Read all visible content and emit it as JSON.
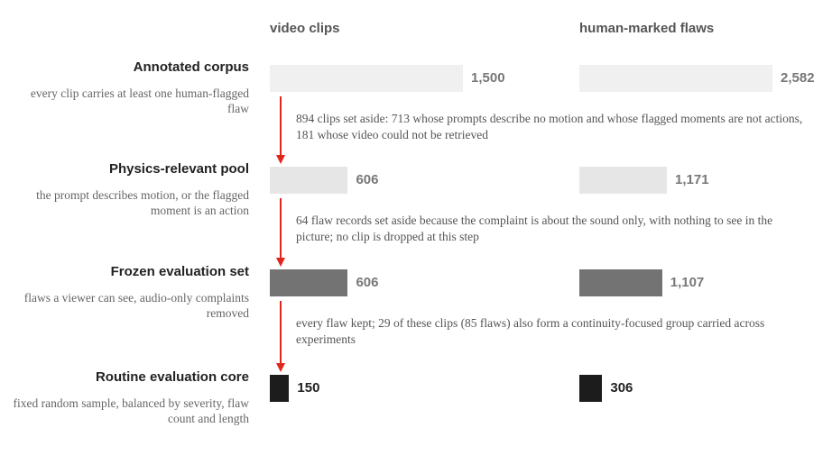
{
  "chart_data": {
    "type": "bar",
    "categories": [
      "Annotated corpus",
      "Physics-relevant pool",
      "Frozen evaluation set",
      "Routine evaluation core"
    ],
    "descriptions": [
      "every clip carries at least one human-flagged flaw",
      "the prompt describes motion, or the flagged moment is an action",
      "flaws a viewer can see, audio-only complaints removed",
      "fixed random sample, balanced by severity, flaw count and length"
    ],
    "notes": [
      "894 clips set aside: 713 whose prompts describe no motion and whose flagged moments are not actions, 181 whose video could not be retrieved",
      "64 flaw records set aside because the complaint is about the sound only, with nothing to see in the picture; no clip is dropped at this step",
      "every flaw kept; 29 of these clips (85 flaws) also form a continuity-focused group carried across experiments"
    ],
    "colors": [
      "#f0f0f0",
      "#e6e6e6",
      "#737373",
      "#1c1c1c"
    ],
    "label_colors": [
      "#777777",
      "#777777",
      "#777777",
      "#222222"
    ],
    "arrow_color": "#e0261c",
    "series": [
      {
        "name": "video clips",
        "values": [
          1500,
          606,
          606,
          150
        ],
        "value_labels": [
          "1,500",
          "606",
          "606",
          "150"
        ]
      },
      {
        "name": "human-marked flaws",
        "values": [
          2582,
          1171,
          1107,
          306
        ],
        "value_labels": [
          "2,582",
          "1,171",
          "1,107",
          "306"
        ]
      }
    ]
  }
}
